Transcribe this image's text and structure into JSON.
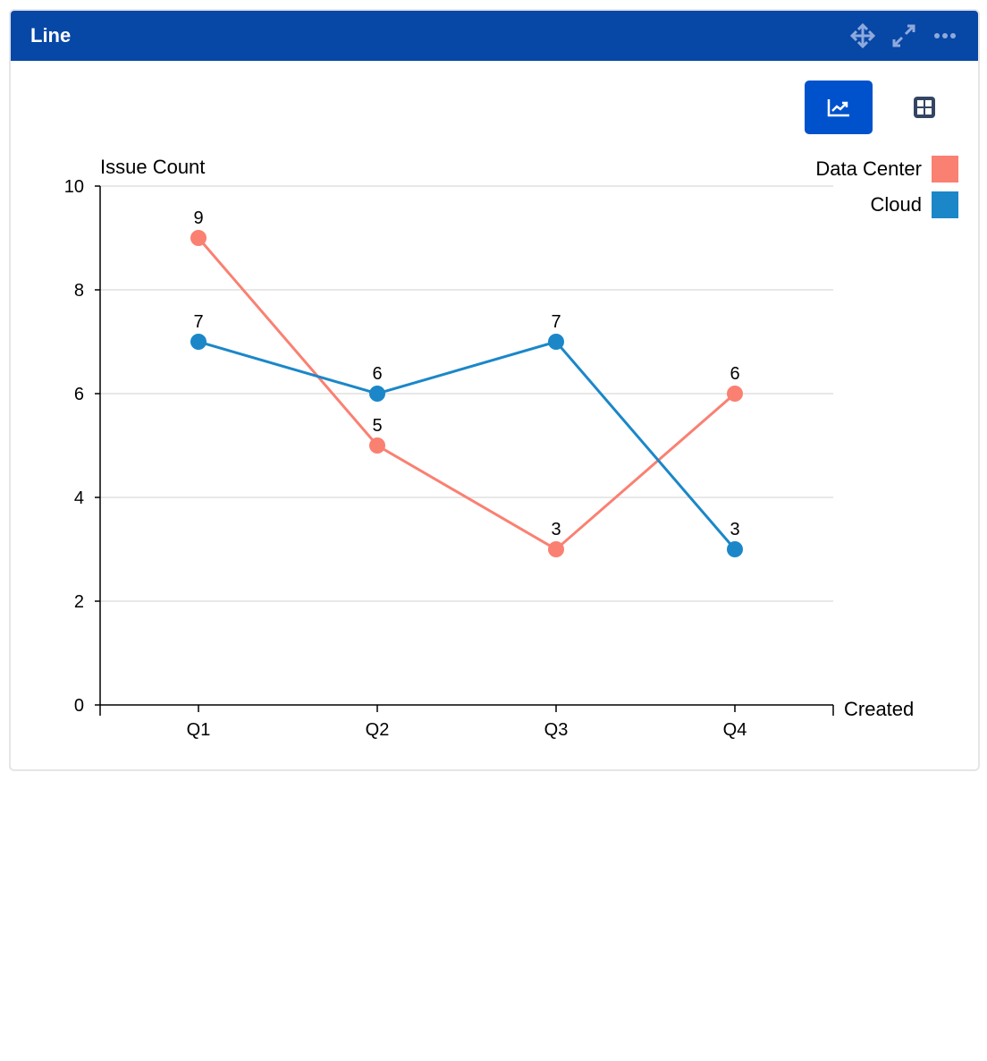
{
  "panel": {
    "title": "Line",
    "icons": [
      "move-icon",
      "expand-icon",
      "more-icon"
    ]
  },
  "toolbar": {
    "buttons": [
      {
        "icon": "line-chart-icon",
        "active": true
      },
      {
        "icon": "table-grid-icon",
        "active": false
      }
    ]
  },
  "colors": {
    "header": "#0747a6",
    "active_button": "#0052cc"
  },
  "chart_data": {
    "type": "line",
    "ylabel": "Issue Count",
    "xlabel": "Created",
    "categories": [
      "Q1",
      "Q2",
      "Q3",
      "Q4"
    ],
    "ylim": [
      0,
      10
    ],
    "yticks": [
      0,
      2,
      4,
      6,
      8,
      10
    ],
    "grid": true,
    "legend": "top-right",
    "series": [
      {
        "name": "Data Center",
        "color": "#fa8072",
        "values": [
          9,
          5,
          3,
          6
        ]
      },
      {
        "name": "Cloud",
        "color": "#1b87c9",
        "values": [
          7,
          6,
          7,
          3
        ]
      }
    ]
  }
}
